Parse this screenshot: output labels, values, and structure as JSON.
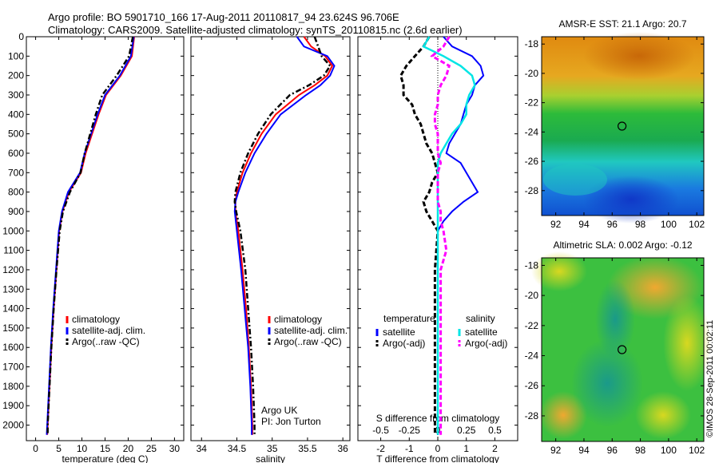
{
  "header": {
    "line1": "Argo profile: BO 5901710_166 17-Aug-2011 20110817_94 23.624S 96.706E",
    "line2": "Climatology: CARS2009. Satellite-adjusted climatology: synTS_20110815.nc (2.6d earlier)"
  },
  "footer_stamp": "©IMOS 28-Sep-2011 00:02:11",
  "colors": {
    "clim": "#ff0000",
    "sat": "#0000ff",
    "argo": "#000000",
    "sal_sat": "#00e5e5",
    "sal_argo": "#ff00ff"
  },
  "chart_data": [
    {
      "type": "line",
      "id": "temperature",
      "xlabel": "temperature (deg C)",
      "xlim": [
        -2,
        32
      ],
      "ylim": [
        2080,
        0
      ],
      "xticks": [
        0,
        5,
        10,
        15,
        20,
        25,
        30
      ],
      "yticks": [
        0,
        100,
        200,
        300,
        400,
        500,
        600,
        700,
        800,
        900,
        1000,
        1100,
        1200,
        1300,
        1400,
        1500,
        1600,
        1700,
        1800,
        1900,
        2000
      ],
      "legend": [
        "climatology",
        "satellite-adj. clim.",
        "Argo(..raw -QC)"
      ],
      "depth": [
        0,
        100,
        200,
        300,
        400,
        500,
        600,
        700,
        800,
        900,
        1000,
        1200,
        1400,
        1600,
        1800,
        2000,
        2050
      ],
      "series": [
        {
          "name": "climatology",
          "values": [
            21.3,
            20.8,
            18.4,
            15.2,
            13.6,
            12.2,
            10.8,
            9.8,
            7.2,
            5.8,
            5.1,
            4.5,
            3.9,
            3.4,
            3.0,
            2.6,
            2.5
          ]
        },
        {
          "name": "satellite-adj. clim.",
          "values": [
            21.2,
            20.6,
            18.2,
            15.0,
            13.4,
            12.0,
            10.6,
            9.6,
            7.0,
            5.7,
            5.0,
            4.4,
            3.8,
            3.3,
            2.9,
            2.5,
            2.4
          ]
        },
        {
          "name": "Argo(..raw -QC)",
          "values": [
            21.0,
            20.2,
            17.5,
            14.4,
            13.0,
            11.8,
            10.6,
            9.7,
            7.4,
            5.9,
            5.2,
            4.5,
            3.9,
            3.4,
            3.0,
            2.6,
            2.6
          ]
        }
      ]
    },
    {
      "type": "line",
      "id": "salinity",
      "xlabel": "salinity",
      "xlim": [
        33.85,
        36.1
      ],
      "ylim": [
        2080,
        0
      ],
      "xticks": [
        34,
        34.5,
        35,
        35.5,
        36
      ],
      "xticklabels": [
        "34",
        "34.5",
        "35",
        "35.5",
        "36"
      ],
      "legend": [
        "climatology",
        "satellite-adj. clim.",
        "Argo(..raw -QC)"
      ],
      "annotations": [
        "Argo UK",
        "PI: Jon Turton"
      ],
      "depth": [
        0,
        50,
        100,
        150,
        200,
        250,
        300,
        400,
        500,
        600,
        700,
        800,
        850,
        900,
        1000,
        1200,
        1400,
        1600,
        1800,
        2000,
        2050
      ],
      "series": [
        {
          "name": "climatology",
          "values": [
            35.45,
            35.55,
            35.75,
            35.85,
            35.78,
            35.6,
            35.38,
            35.05,
            34.85,
            34.7,
            34.58,
            34.5,
            34.48,
            34.48,
            34.52,
            34.58,
            34.63,
            34.67,
            34.7,
            34.72,
            34.72
          ]
        },
        {
          "name": "satellite-adj. clim.",
          "values": [
            35.35,
            35.45,
            35.78,
            35.88,
            35.82,
            35.68,
            35.48,
            35.12,
            34.92,
            34.75,
            34.62,
            34.52,
            34.48,
            34.47,
            34.5,
            34.56,
            34.61,
            34.66,
            34.69,
            34.71,
            34.71
          ]
        },
        {
          "name": "Argo(..raw -QC)",
          "values": [
            35.6,
            35.65,
            35.7,
            35.82,
            35.73,
            35.52,
            35.25,
            34.98,
            34.8,
            34.66,
            34.55,
            34.48,
            34.47,
            34.49,
            34.55,
            34.62,
            34.66,
            34.7,
            34.73,
            34.75,
            34.75
          ]
        }
      ]
    },
    {
      "type": "line",
      "id": "difference",
      "xlabel": "T difference from climatology",
      "xlabel_top": "S difference from climatology",
      "xlim": [
        -2.8,
        2.8
      ],
      "ylim": [
        2080,
        0
      ],
      "xticks": [
        -2,
        -1,
        0,
        1,
        2
      ],
      "sal_ticklabels": [
        "-0.5",
        "-0.25",
        "0",
        "0.25",
        "0.5"
      ],
      "legend_titles": [
        "temperature",
        "salinity"
      ],
      "legend": [
        "satellite",
        "Argo(-adj)",
        "satellite",
        "Argo(-adj)"
      ],
      "depth": [
        0,
        50,
        100,
        150,
        200,
        250,
        300,
        350,
        400,
        450,
        500,
        550,
        600,
        650,
        700,
        750,
        800,
        850,
        900,
        950,
        1000,
        1100,
        1200,
        1300,
        1400,
        1600,
        1800,
        2000,
        2050
      ],
      "series": [
        {
          "name": "T satellite",
          "values": [
            0.2,
            0.5,
            1.2,
            1.5,
            1.6,
            1.3,
            1.2,
            1.0,
            0.9,
            0.8,
            0.6,
            0.4,
            0.3,
            0.8,
            1.0,
            1.2,
            1.4,
            0.9,
            0.5,
            0.2,
            0.0,
            0.0,
            0.0,
            0.0,
            0.0,
            0.0,
            0.0,
            0.0,
            0.0
          ]
        },
        {
          "name": "T Argo(-adj)",
          "values": [
            -0.3,
            -0.5,
            -0.8,
            -1.1,
            -1.3,
            -1.2,
            -1.2,
            -0.9,
            -0.8,
            -0.6,
            -0.5,
            -0.4,
            -0.2,
            -0.1,
            0.0,
            -0.2,
            -0.3,
            -0.5,
            -0.4,
            -0.2,
            0.0,
            -0.05,
            -0.1,
            -0.1,
            -0.1,
            -0.1,
            -0.1,
            -0.1,
            -0.1
          ]
        },
        {
          "name": "S satellite",
          "values": [
            -0.3,
            -0.5,
            0.2,
            0.8,
            1.2,
            1.3,
            1.1,
            1.0,
            1.0,
            0.8,
            0.5,
            0.3,
            0.1,
            0.0,
            0.0,
            0.0,
            0.0,
            0.0,
            0.0,
            0.0,
            0.0,
            0.0,
            0.0,
            0.0,
            0.0,
            0.0,
            0.0,
            0.0,
            0.0
          ]
        },
        {
          "name": "S Argo(-adj)",
          "values": [
            0.4,
            0.2,
            -0.2,
            0.4,
            0.3,
            0.1,
            0.0,
            0.0,
            -0.1,
            -0.1,
            0.0,
            0.0,
            0.0,
            0.1,
            0.0,
            0.0,
            0.0,
            0.0,
            0.1,
            0.1,
            0.2,
            0.3,
            0.1,
            0.1,
            0.1,
            0.1,
            0.1,
            0.1,
            0.1
          ]
        }
      ]
    },
    {
      "type": "heatmap",
      "id": "sst",
      "title": "AMSR-E SST: 21.1 Argo: 20.7",
      "xlim": [
        91,
        102.5
      ],
      "ylim": [
        -29.7,
        -17.5
      ],
      "xticks": [
        92,
        94,
        96,
        98,
        100,
        102
      ],
      "yticks": [
        -28,
        -26,
        -24,
        -22,
        -20,
        -18
      ],
      "marker": {
        "lon": 96.7,
        "lat": -23.6
      }
    },
    {
      "type": "heatmap",
      "id": "sla",
      "title": "Altimetric SLA: 0.002 Argo: -0.12",
      "xlim": [
        91,
        102.5
      ],
      "ylim": [
        -29.7,
        -17.5
      ],
      "xticks": [
        92,
        94,
        96,
        98,
        100,
        102
      ],
      "yticks": [
        -28,
        -26,
        -24,
        -22,
        -20,
        -18
      ],
      "marker": {
        "lon": 96.7,
        "lat": -23.6
      }
    }
  ]
}
